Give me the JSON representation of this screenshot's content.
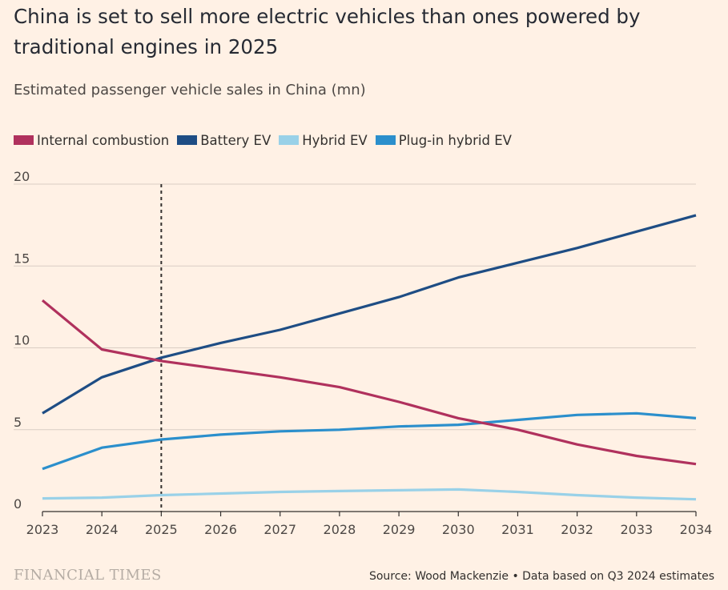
{
  "chart_data": {
    "type": "line",
    "title": "China is set to sell more electric vehicles than ones powered by traditional engines in 2025",
    "subtitle": "Estimated passenger vehicle sales in China (mn)",
    "x": [
      2023,
      2024,
      2025,
      2026,
      2027,
      2028,
      2029,
      2030,
      2031,
      2032,
      2033,
      2034
    ],
    "x_tick_labels": [
      "2023",
      "2024",
      "2025",
      "2026",
      "2027",
      "2028",
      "2029",
      "2030",
      "2031",
      "2032",
      "2033",
      "2034"
    ],
    "y_tick_values": [
      0,
      5,
      10,
      15,
      20
    ],
    "y_tick_labels": [
      "0",
      "5",
      "10",
      "15",
      "20"
    ],
    "ylim": [
      0,
      20
    ],
    "grid": true,
    "legend_position": "top",
    "reference_line_x": 2025,
    "series": [
      {
        "name": "Internal combustion",
        "color": "#b0315d",
        "values": [
          12.9,
          9.9,
          9.2,
          8.7,
          8.2,
          7.6,
          6.7,
          5.7,
          5.0,
          4.1,
          3.4,
          2.9
        ]
      },
      {
        "name": "Battery EV",
        "color": "#1e4d84",
        "values": [
          6.0,
          8.2,
          9.4,
          10.3,
          11.1,
          12.1,
          13.1,
          14.3,
          15.2,
          16.1,
          17.1,
          18.1
        ]
      },
      {
        "name": "Hybrid EV",
        "color": "#99d1e8",
        "values": [
          0.8,
          0.85,
          1.0,
          1.1,
          1.2,
          1.25,
          1.3,
          1.35,
          1.2,
          1.0,
          0.85,
          0.75
        ]
      },
      {
        "name": "Plug-in hybrid EV",
        "color": "#2b8fcc",
        "values": [
          2.6,
          3.9,
          4.4,
          4.7,
          4.9,
          5.0,
          5.2,
          5.3,
          5.6,
          5.9,
          6.0,
          5.7
        ]
      }
    ]
  },
  "footer": {
    "logo": "FINANCIAL TIMES",
    "source": "Source: Wood Mackenzie • Data based on Q3 2024 estimates"
  },
  "colors": {
    "background": "#fff1e5",
    "gridline": "#d9cdc3",
    "axis": "#33302e"
  }
}
